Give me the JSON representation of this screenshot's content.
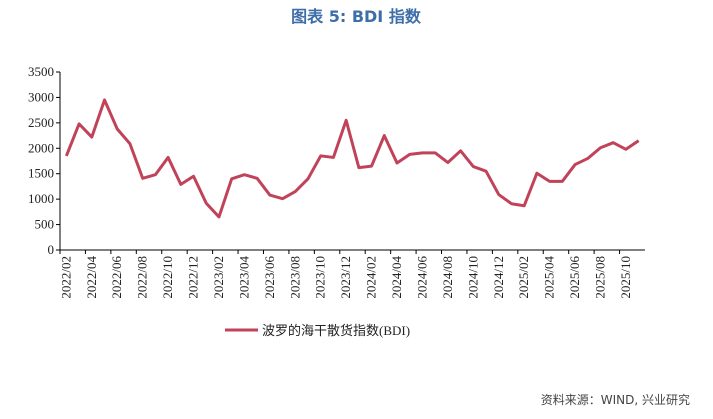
{
  "chart_data": {
    "type": "line",
    "title": "图表 5: BDI 指数",
    "source": "资料来源：WIND, 兴业研究",
    "categories": [
      "2022/02",
      null,
      "2022/04",
      null,
      "2022/06",
      null,
      "2022/08",
      null,
      "2022/10",
      null,
      "2022/12",
      null,
      "2023/02",
      null,
      "2023/04",
      null,
      "2023/06",
      null,
      "2023/08",
      null,
      "2023/10",
      null,
      "2023/12",
      null,
      "2024/02",
      null,
      "2024/04",
      null,
      "2024/06",
      null,
      "2024/08",
      null,
      "2024/10",
      null,
      "2024/12",
      null,
      "2025/02",
      null,
      "2025/04",
      null,
      "2025/06",
      null,
      "2025/08",
      null,
      "2025/10",
      null
    ],
    "series": [
      {
        "name": "波罗的海干散货指数(BDI)",
        "color": "#c0435a",
        "values": [
          1850,
          2480,
          2220,
          2950,
          2380,
          2090,
          1410,
          1480,
          1820,
          1290,
          1450,
          920,
          650,
          1400,
          1480,
          1410,
          1080,
          1010,
          1150,
          1400,
          1850,
          1820,
          2550,
          1620,
          1650,
          2250,
          1710,
          1880,
          1910,
          1910,
          1720,
          1950,
          1640,
          1550,
          1090,
          910,
          870,
          1510,
          1350,
          1350,
          1680,
          1800,
          2010,
          2110,
          1980,
          2150
        ]
      }
    ],
    "ylim": [
      0,
      3500
    ],
    "yticks": [
      0,
      500,
      1000,
      1500,
      2000,
      2500,
      3000,
      3500
    ],
    "legend": "bottom"
  }
}
